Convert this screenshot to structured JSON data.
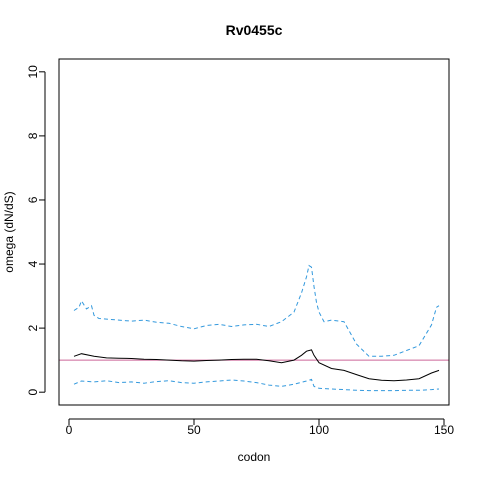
{
  "chart_data": {
    "type": "line",
    "title": "Rv0455c",
    "xlabel": "codon",
    "ylabel": "omega (dN/dS)",
    "xlim": [
      -4,
      152
    ],
    "ylim": [
      -0.4,
      10.4
    ],
    "xticks": [
      0,
      50,
      100,
      150
    ],
    "yticks": [
      0,
      2,
      4,
      6,
      8,
      10
    ],
    "reference_line": {
      "y": 1,
      "color": "#cc6699"
    },
    "series": [
      {
        "role": "estimate",
        "color": "#000000",
        "dash": "solid",
        "x": [
          2,
          5,
          10,
          15,
          20,
          25,
          30,
          35,
          40,
          45,
          50,
          55,
          60,
          65,
          70,
          75,
          80,
          85,
          90,
          93,
          95,
          97,
          98,
          100,
          105,
          110,
          115,
          120,
          125,
          130,
          135,
          140,
          145,
          148
        ],
        "y": [
          1.12,
          1.2,
          1.12,
          1.07,
          1.06,
          1.05,
          1.03,
          1.02,
          1.0,
          0.98,
          0.97,
          0.99,
          1.0,
          1.02,
          1.03,
          1.03,
          0.98,
          0.92,
          1.0,
          1.15,
          1.28,
          1.32,
          1.15,
          0.92,
          0.74,
          0.68,
          0.55,
          0.42,
          0.37,
          0.36,
          0.38,
          0.42,
          0.6,
          0.68
        ]
      },
      {
        "role": "upper",
        "color": "#3399dd",
        "dash": "dashed",
        "x": [
          2,
          4,
          5,
          7,
          9,
          10,
          12,
          20,
          25,
          30,
          35,
          40,
          45,
          50,
          55,
          60,
          65,
          70,
          75,
          80,
          85,
          90,
          93,
          95,
          96,
          97,
          98,
          99,
          100,
          102,
          105,
          110,
          115,
          120,
          125,
          130,
          135,
          140,
          145,
          147,
          148
        ],
        "y": [
          2.55,
          2.65,
          2.85,
          2.6,
          2.7,
          2.4,
          2.3,
          2.25,
          2.22,
          2.25,
          2.18,
          2.15,
          2.05,
          1.98,
          2.08,
          2.12,
          2.05,
          2.1,
          2.12,
          2.05,
          2.2,
          2.5,
          3.1,
          3.6,
          3.95,
          3.9,
          3.3,
          2.8,
          2.5,
          2.2,
          2.25,
          2.2,
          1.5,
          1.12,
          1.12,
          1.15,
          1.3,
          1.45,
          2.1,
          2.65,
          2.7
        ]
      },
      {
        "role": "lower",
        "color": "#3399dd",
        "dash": "dashed",
        "x": [
          2,
          5,
          10,
          15,
          20,
          25,
          30,
          35,
          40,
          45,
          50,
          55,
          60,
          65,
          70,
          75,
          80,
          85,
          90,
          95,
          97,
          98,
          100,
          105,
          110,
          115,
          120,
          125,
          130,
          135,
          140,
          145,
          148
        ],
        "y": [
          0.25,
          0.35,
          0.32,
          0.36,
          0.3,
          0.32,
          0.28,
          0.33,
          0.36,
          0.3,
          0.28,
          0.32,
          0.35,
          0.38,
          0.35,
          0.3,
          0.22,
          0.18,
          0.25,
          0.35,
          0.4,
          0.18,
          0.12,
          0.1,
          0.08,
          0.06,
          0.05,
          0.05,
          0.05,
          0.06,
          0.06,
          0.08,
          0.1
        ]
      }
    ]
  }
}
